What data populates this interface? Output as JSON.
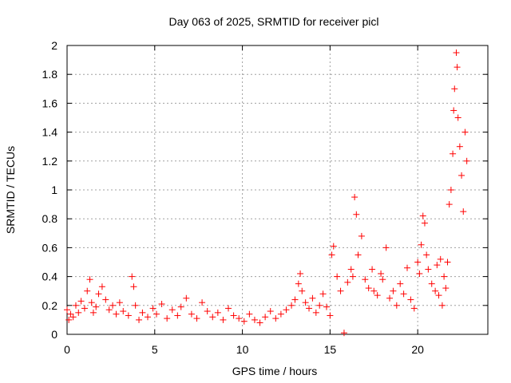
{
  "chart_data": {
    "type": "scatter",
    "title": "Day 063 of 2025, SRMTID for receiver picl",
    "xlabel": "GPS time / hours",
    "ylabel": "SRMTID / TECUs",
    "xlim": [
      0,
      24
    ],
    "ylim": [
      0,
      2
    ],
    "xticks": [
      0,
      5,
      10,
      15,
      20
    ],
    "xtick_labels": [
      "0",
      "5",
      "10",
      "15",
      "20"
    ],
    "yticks": [
      0,
      0.2,
      0.4,
      0.6,
      0.8,
      1,
      1.2,
      1.4,
      1.6,
      1.8,
      2
    ],
    "ytick_labels": [
      "0",
      "0.2",
      "0.4",
      "0.6",
      "0.8",
      "1",
      "1.2",
      "1.4",
      "1.6",
      "1.8",
      "2"
    ],
    "grid": true,
    "marker": "+",
    "color": "#ff0000",
    "series": [
      {
        "name": "SRMTID",
        "x": [
          0,
          0.1,
          0.2,
          0.35,
          0.5,
          0.65,
          0.8,
          1,
          1.15,
          1.3,
          1.4,
          1.5,
          1.65,
          1.8,
          2,
          2.2,
          2.4,
          2.6,
          2.8,
          3,
          3.2,
          3.5,
          3.7,
          3.8,
          3.9,
          4.1,
          4.3,
          4.6,
          4.9,
          5.1,
          5.4,
          5.7,
          6,
          6.3,
          6.5,
          6.8,
          7.1,
          7.4,
          7.7,
          8,
          8.3,
          8.6,
          8.9,
          9.2,
          9.5,
          9.8,
          10.1,
          10.4,
          10.7,
          11,
          11.3,
          11.6,
          11.9,
          12.2,
          12.5,
          12.8,
          13,
          13.2,
          13.3,
          13.4,
          13.6,
          13.8,
          14,
          14.2,
          14.4,
          14.6,
          14.8,
          15,
          15.1,
          15.2,
          15.4,
          15.6,
          15.8,
          16,
          16.2,
          16.3,
          16.4,
          16.5,
          16.6,
          16.8,
          17,
          17.2,
          17.4,
          17.5,
          17.7,
          17.9,
          18,
          18.2,
          18.4,
          18.6,
          18.8,
          19,
          19.2,
          19.4,
          19.6,
          19.8,
          20,
          20.1,
          20.2,
          20.3,
          20.4,
          20.5,
          20.6,
          20.8,
          21,
          21.1,
          21.2,
          21.3,
          21.4,
          21.5,
          21.6,
          21.7,
          21.8,
          21.9,
          22,
          22.05,
          22.1,
          22.2,
          22.25,
          22.3,
          22.4,
          22.5,
          22.6,
          22.7,
          22.8
        ],
        "y": [
          0.17,
          0.1,
          0.14,
          0.12,
          0.2,
          0.15,
          0.23,
          0.18,
          0.3,
          0.38,
          0.22,
          0.15,
          0.19,
          0.28,
          0.33,
          0.24,
          0.17,
          0.2,
          0.14,
          0.22,
          0.16,
          0.13,
          0.4,
          0.33,
          0.2,
          0.1,
          0.15,
          0.12,
          0.18,
          0.14,
          0.21,
          0.11,
          0.17,
          0.13,
          0.19,
          0.25,
          0.14,
          0.11,
          0.22,
          0.16,
          0.12,
          0.15,
          0.1,
          0.18,
          0.13,
          0.11,
          0.09,
          0.14,
          0.1,
          0.08,
          0.12,
          0.16,
          0.11,
          0.14,
          0.17,
          0.2,
          0.24,
          0.35,
          0.42,
          0.3,
          0.22,
          0.18,
          0.25,
          0.15,
          0.2,
          0.28,
          0.19,
          0.13,
          0.55,
          0.61,
          0.4,
          0.3,
          0.01,
          0.36,
          0.45,
          0.4,
          0.95,
          0.83,
          0.55,
          0.68,
          0.38,
          0.32,
          0.45,
          0.3,
          0.27,
          0.42,
          0.38,
          0.6,
          0.25,
          0.3,
          0.2,
          0.35,
          0.28,
          0.46,
          0.24,
          0.18,
          0.5,
          0.42,
          0.62,
          0.82,
          0.77,
          0.55,
          0.45,
          0.35,
          0.3,
          0.48,
          0.27,
          0.52,
          0.2,
          0.4,
          0.32,
          0.5,
          0.9,
          1.0,
          1.25,
          1.55,
          1.7,
          1.95,
          1.85,
          1.5,
          1.3,
          1.1,
          0.85,
          1.4,
          1.2
        ]
      }
    ]
  }
}
